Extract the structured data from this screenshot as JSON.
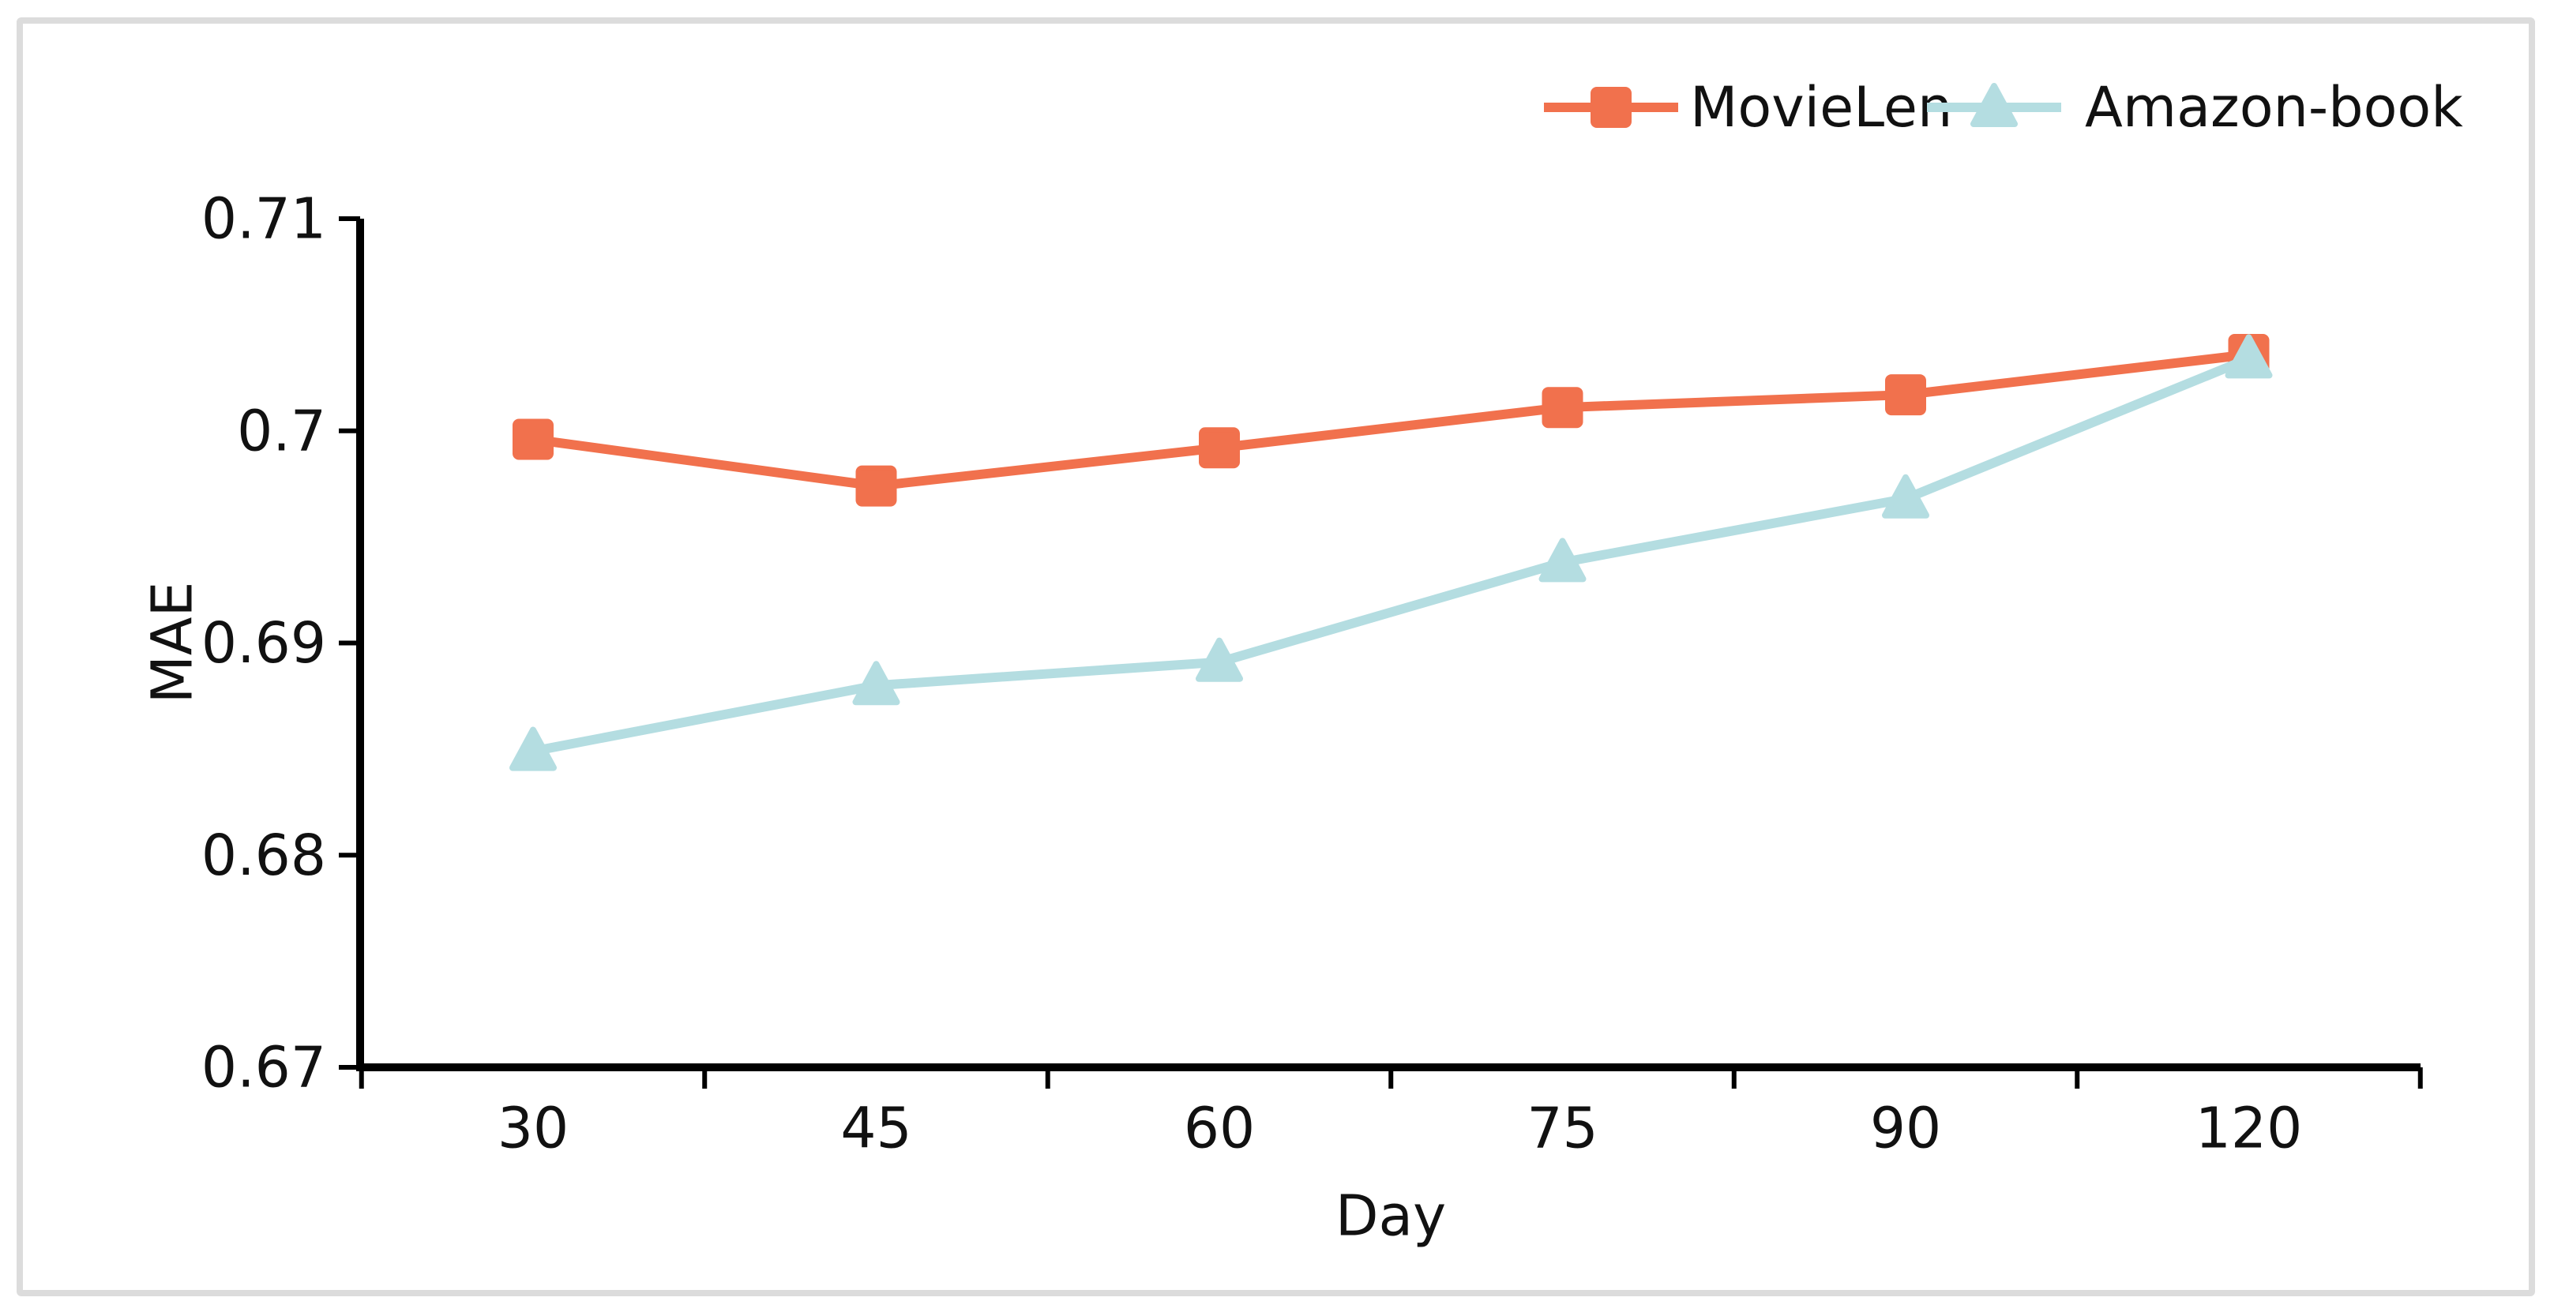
{
  "figure": {
    "background_color": "#ffffff",
    "frame_border_color": "#dcdcdc"
  },
  "chart_data": {
    "type": "line",
    "title": "",
    "xlabel": "Day",
    "ylabel": "MAE",
    "categories": [
      "30",
      "45",
      "60",
      "75",
      "90",
      "120"
    ],
    "series": [
      {
        "name": "MovieLen",
        "marker": "square",
        "color": "#f1714d",
        "values": [
          0.6996,
          0.6974,
          0.6992,
          0.7011,
          0.7017,
          0.7036
        ]
      },
      {
        "name": "Amazon-book",
        "marker": "triangle",
        "color": "#b4dde1",
        "values": [
          0.6849,
          0.688,
          0.6891,
          0.6938,
          0.6968,
          0.7034
        ]
      }
    ],
    "ylim": [
      0.67,
      0.71
    ],
    "y_ticks": [
      0.67,
      0.68,
      0.69,
      0.7,
      0.71
    ],
    "y_tick_labels": [
      "0.67",
      "0.68",
      "0.69",
      "0.7",
      "0.71"
    ],
    "x_tick_style": "boundary-ticks-between-categories",
    "axis_color": "#000000",
    "grid": false,
    "legend_position": "top-right"
  }
}
